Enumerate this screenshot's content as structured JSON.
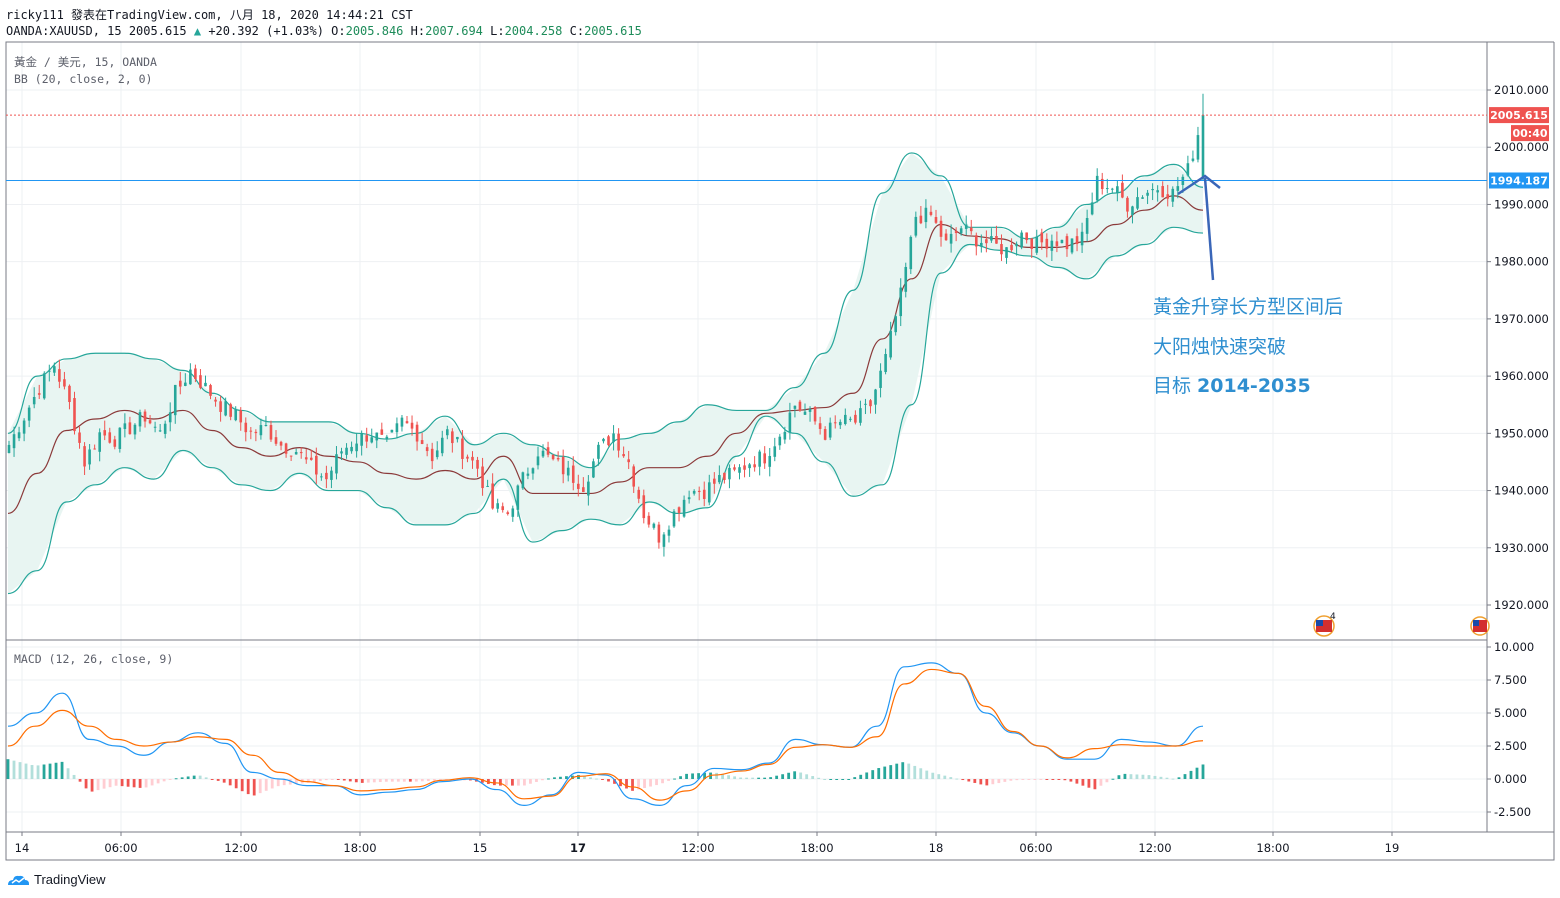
{
  "header": {
    "line1": "ricky111 發表在TradingView.com, 八月 18, 2020 14:44:21 CST",
    "symbol": "OANDA:XAUUSD, 15",
    "last": "2005.615",
    "change": "+20.392 (+1.03%)",
    "o_label": "O:",
    "o": "2005.846",
    "h_label": "H:",
    "h": "2007.694",
    "l_label": "L:",
    "l": "2004.258",
    "c_label": "C:",
    "c": "2005.615"
  },
  "main_pane": {
    "title": "黃金 / 美元, 15, OANDA",
    "indicator": "BB (20, close, 2, 0)"
  },
  "macd_pane": {
    "indicator": "MACD (12, 26, close, 9)"
  },
  "price_axis": {
    "ticks": [
      "2010.000",
      "2000.000",
      "1990.000",
      "1980.000",
      "1970.000",
      "1960.000",
      "1950.000",
      "1940.000",
      "1930.000",
      "1920.000"
    ],
    "last_price_label": "2005.615",
    "countdown_label": "00:40",
    "hline_label": "1994.187"
  },
  "macd_axis": {
    "ticks": [
      "10.000",
      "7.500",
      "5.000",
      "2.500",
      "0.000",
      "-2.500"
    ]
  },
  "time_axis": {
    "ticks": [
      "14",
      "06:00",
      "12:00",
      "18:00",
      "15",
      "17",
      "12:00",
      "18:00",
      "18",
      "06:00",
      "12:00",
      "18:00",
      "19"
    ],
    "bold": [
      "17"
    ]
  },
  "annotation": {
    "line1": "黃金升穿长方型区间后",
    "line2": "大阳烛快速突破",
    "line3_prefix": "目标 ",
    "line3_value": "2014-2035"
  },
  "footer": {
    "brand": "TradingView"
  },
  "colors": {
    "up": "#26a69a",
    "down": "#ef5350",
    "bb_fill": "#e8f5f2",
    "bb_band": "#26a69a",
    "bb_basis": "#8b3a3a",
    "macd": "#2196f3",
    "signal": "#ff6d00",
    "hline": "#2196f3",
    "annotation": "#2f8fd0",
    "last_price": "#ef5350"
  },
  "chart_data": {
    "type": "candlestick",
    "symbol": "XAUUSD",
    "interval": "15",
    "ylim": [
      1915,
      2015
    ],
    "horizontal_line": 1994.187,
    "last_price": 2005.615,
    "close_approx": [
      1948,
      1953,
      1958,
      1962,
      1955,
      1945,
      1950,
      1949,
      1951,
      1953,
      1950,
      1957,
      1961,
      1958,
      1955,
      1953,
      1950,
      1951,
      1948,
      1947,
      1944,
      1942,
      1947,
      1949,
      1950,
      1948,
      1952,
      1950,
      1946,
      1950,
      1947,
      1944,
      1937,
      1936,
      1942,
      1947,
      1945,
      1943,
      1941,
      1947,
      1950,
      1945,
      1936,
      1932,
      1936,
      1940,
      1940,
      1942,
      1943,
      1945,
      1946,
      1950,
      1955,
      1953,
      1950,
      1952,
      1952,
      1955,
      1963,
      1974,
      1988,
      1988,
      1983,
      1986,
      1984,
      1983,
      1982,
      1985,
      1983,
      1984,
      1983,
      1984,
      1994,
      1993,
      1990,
      1992,
      1993,
      1992,
      1996,
      2005.615
    ],
    "bb_upper_approx": [
      1950,
      1960,
      1963,
      1964,
      1964,
      1963,
      1961,
      1957,
      1954,
      1952,
      1952,
      1952,
      1950,
      1949,
      1950,
      1953,
      1948,
      1950,
      1948,
      1946,
      1944,
      1949,
      1950,
      1952,
      1955,
      1954,
      1954,
      1958,
      1964,
      1975,
      1992,
      1999,
      1995,
      1986,
      1986,
      1984,
      1986,
      1990,
      1992,
      1995,
      1997,
      1993
    ],
    "bb_lower_approx": [
      1922,
      1926,
      1938,
      1941,
      1944,
      1942,
      1947,
      1944,
      1941,
      1940,
      1943,
      1940,
      1940,
      1937,
      1934,
      1934,
      1936,
      1942,
      1931,
      1933,
      1935,
      1934,
      1938,
      1936,
      1937,
      1946,
      1953,
      1950,
      1945,
      1939,
      1941,
      1955,
      1978,
      1983,
      1982,
      1981,
      1979,
      1977,
      1981,
      1983,
      1986,
      1985
    ],
    "macd_approx": [
      4,
      5,
      6.5,
      3,
      2.5,
      1.8,
      2.8,
      3.5,
      2.7,
      0.5,
      0,
      -0.5,
      -0.5,
      -1.2,
      -1,
      -0.8,
      -0.2,
      0,
      -0.8,
      -2,
      -1.2,
      0.5,
      0.3,
      -1.5,
      -2,
      -0.5,
      0.8,
      0.7,
      1.2,
      3,
      2.6,
      2.4,
      4,
      8.5,
      8.8,
      8,
      5,
      3.5,
      2.5,
      1.5,
      1.5,
      3,
      2.8,
      2.5,
      4.0
    ],
    "signal_approx": [
      2.5,
      4,
      5.2,
      4,
      3,
      2.5,
      2.8,
      3.2,
      3,
      1.8,
      0.5,
      -0.2,
      -0.5,
      -0.9,
      -0.8,
      -0.6,
      -0.1,
      0.1,
      -0.3,
      -1.5,
      -1.3,
      0.2,
      0.4,
      -0.6,
      -1.6,
      -0.9,
      0.3,
      0.6,
      1.1,
      2.4,
      2.6,
      2.4,
      3.2,
      7.2,
      8.3,
      8,
      5.5,
      3.6,
      2.5,
      1.6,
      2.3,
      2.6,
      2.5,
      2.5,
      2.9
    ],
    "macd_ylim": [
      -4,
      10.5
    ]
  }
}
